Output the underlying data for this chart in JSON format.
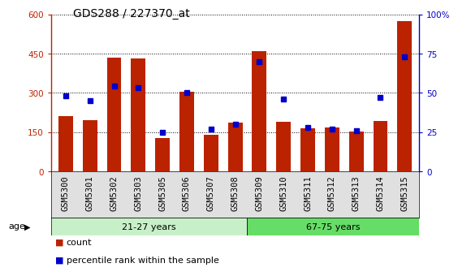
{
  "title": "GDS288 / 227370_at",
  "categories": [
    "GSM5300",
    "GSM5301",
    "GSM5302",
    "GSM5303",
    "GSM5305",
    "GSM5306",
    "GSM5307",
    "GSM5308",
    "GSM5309",
    "GSM5310",
    "GSM5311",
    "GSM5312",
    "GSM5313",
    "GSM5314",
    "GSM5315"
  ],
  "counts": [
    210,
    195,
    435,
    432,
    128,
    305,
    140,
    185,
    458,
    190,
    163,
    168,
    152,
    192,
    575
  ],
  "percentiles": [
    48,
    45,
    54,
    53,
    25,
    50,
    27,
    30,
    70,
    46,
    28,
    27,
    26,
    47,
    73
  ],
  "group1_label": "21-27 years",
  "group2_label": "67-75 years",
  "group1_count": 8,
  "group1_color": "#c8f0c8",
  "group2_color": "#66dd66",
  "bar_color": "#bb2200",
  "dot_color": "#0000cc",
  "ylim_left": [
    0,
    600
  ],
  "ylim_right": [
    0,
    100
  ],
  "yticks_left": [
    0,
    150,
    300,
    450,
    600
  ],
  "yticks_right": [
    0,
    25,
    50,
    75,
    100
  ],
  "age_label": "age",
  "legend_count": "count",
  "legend_percentile": "percentile rank within the sample",
  "title_fontsize": 10,
  "tick_fontsize": 7.5,
  "label_fontsize": 8
}
